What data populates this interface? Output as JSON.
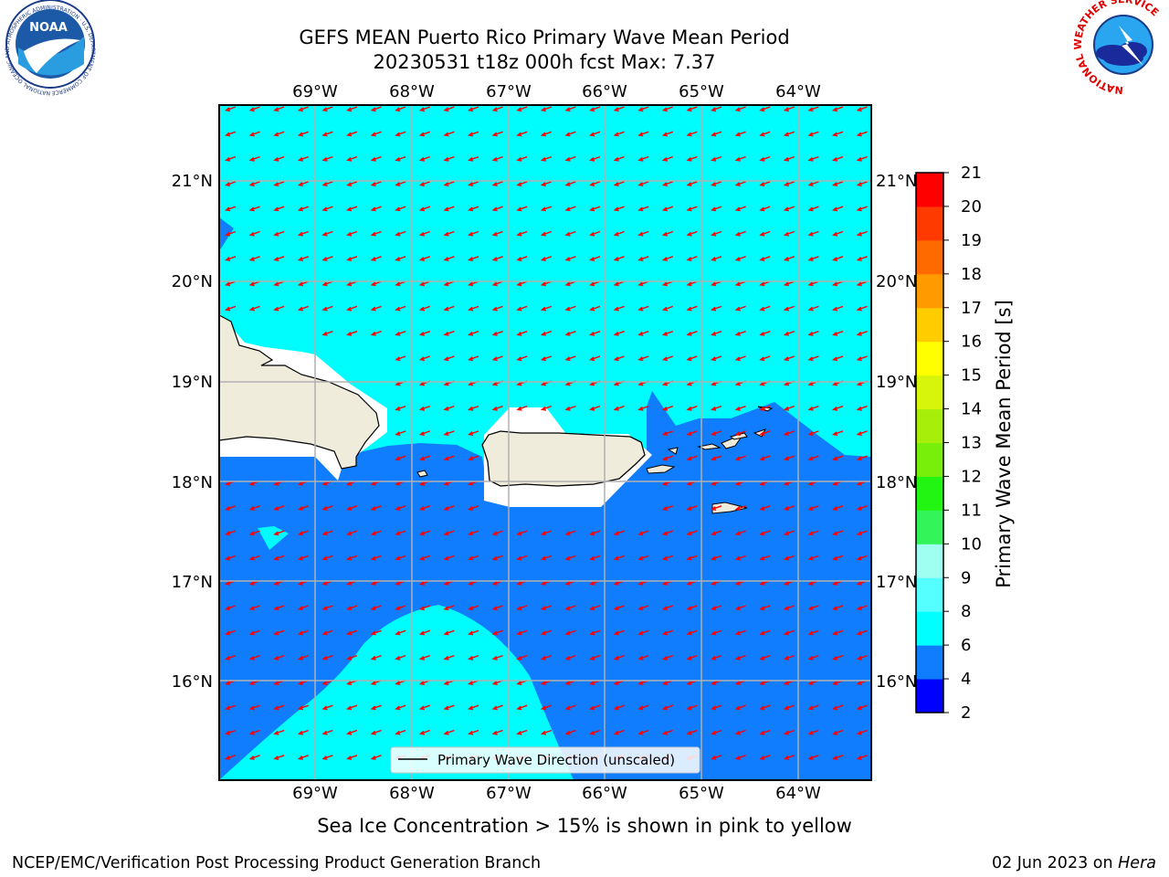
{
  "title": {
    "line1": "GEFS MEAN Puerto Rico Primary Wave Mean Period",
    "line2": "20230531 t18z 000h fcst   Max: 7.37"
  },
  "map": {
    "lon_labels": [
      "69°W",
      "68°W",
      "67°W",
      "66°W",
      "65°W",
      "64°W"
    ],
    "lat_labels": [
      "21°N",
      "20°N",
      "19°N",
      "18°N",
      "17°N",
      "16°N"
    ],
    "land_color": "#efecdc",
    "ocean_low_color": "#0f7dfd",
    "ocean_high_color": "#00fdfd",
    "arrow_color": "#ff0000",
    "arrow_direction": "toward west-southwest"
  },
  "legend": {
    "label": "Primary Wave Direction (unscaled)"
  },
  "colorbar": {
    "label": "Primary Wave Mean Period [s]",
    "ticks": [
      "2",
      "4",
      "6",
      "8",
      "9",
      "10",
      "11",
      "12",
      "13",
      "14",
      "15",
      "16",
      "17",
      "18",
      "19",
      "20",
      "21"
    ],
    "colors": [
      "#0000ff",
      "#0f7dfd",
      "#00ffff",
      "#55ffff",
      "#9ffff0",
      "#33f55a",
      "#22f511",
      "#77ef0a",
      "#a7ef0a",
      "#d7f50a",
      "#ffff00",
      "#ffcc00",
      "#ff9a00",
      "#ff6a00",
      "#ff3a00",
      "#ff0000"
    ]
  },
  "note": "Sea Ice Concentration > 15% is shown in pink to yellow",
  "footer": {
    "left": "NCEP/EMC/Verification Post Processing Product Generation Branch",
    "date": "02 Jun 2023 on ",
    "machine": "Hera"
  },
  "logos": {
    "noaa_text": "NOAA",
    "noaa_ring": "NATIONAL OCEANIC AND ATMOSPHERIC ADMINISTRATION · U.S. DEPARTMENT OF COMMERCE",
    "nws_ring": "NATIONAL WEATHER SERVICE"
  }
}
